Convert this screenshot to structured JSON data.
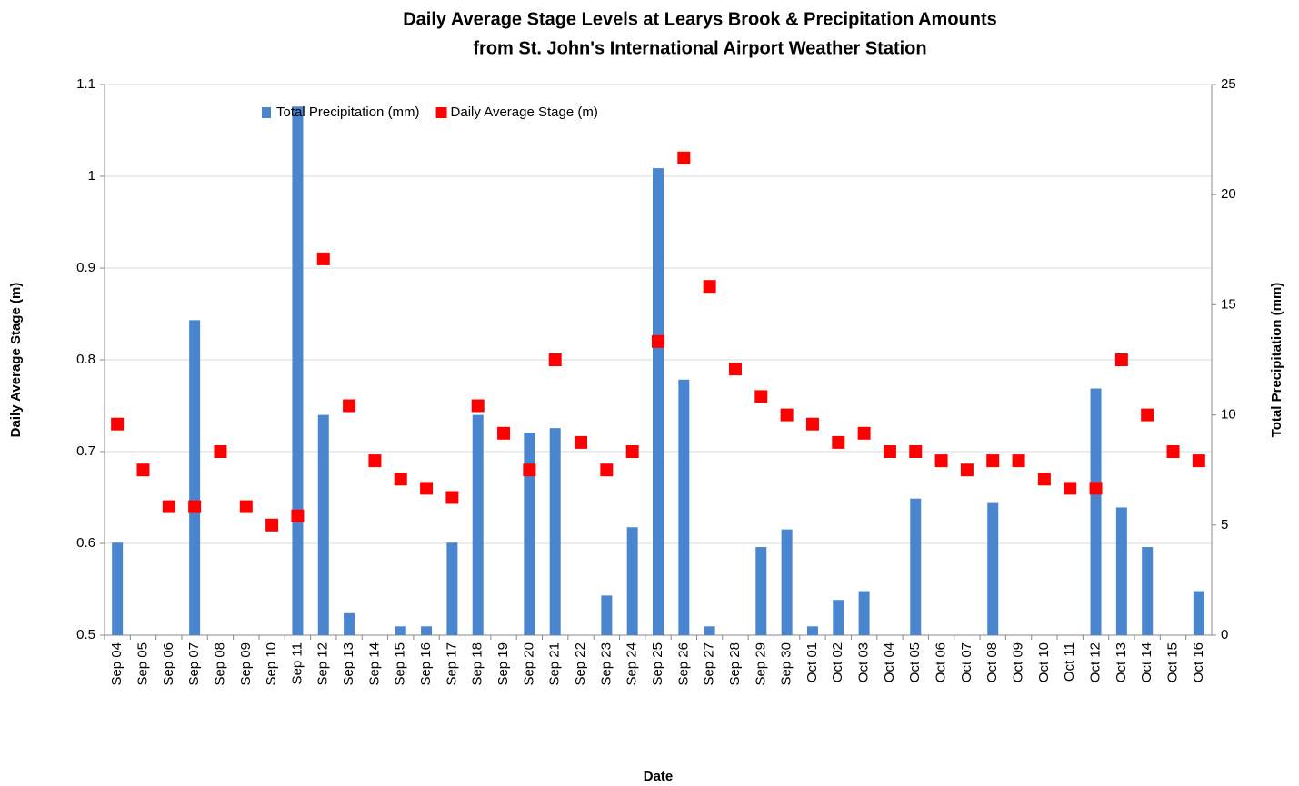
{
  "chart_data": {
    "type": "combo",
    "title": [
      "Daily Average Stage Levels at Learys Brook & Precipitation Amounts",
      "from St. John's International Airport Weather Station"
    ],
    "xlabel": "Date",
    "ylabel": "Daily Average Stage (m)",
    "y2label": "Total Precipitation (mm)",
    "categories": [
      "Sep 04",
      "Sep 05",
      "Sep 06",
      "Sep 07",
      "Sep 08",
      "Sep 09",
      "Sep 10",
      "Sep 11",
      "Sep 12",
      "Sep 13",
      "Sep 14",
      "Sep 15",
      "Sep 16",
      "Sep 17",
      "Sep 18",
      "Sep 19",
      "Sep 20",
      "Sep 21",
      "Sep 22",
      "Sep 23",
      "Sep 24",
      "Sep 25",
      "Sep 26",
      "Sep 27",
      "Sep 28",
      "Sep 29",
      "Sep 30",
      "Oct 01",
      "Oct 02",
      "Oct 03",
      "Oct 04",
      "Oct 05",
      "Oct 06",
      "Oct 07",
      "Oct 08",
      "Oct 09",
      "Oct 10",
      "Oct 11",
      "Oct 12",
      "Oct 13",
      "Oct 14",
      "Oct 15",
      "Oct 16"
    ],
    "series": [
      {
        "name": "Total Precipitation (mm)",
        "type": "bar",
        "axis": "y2",
        "color": "#4a86d0",
        "values": [
          4.2,
          0,
          0,
          14.3,
          0,
          0,
          0,
          24.0,
          10.0,
          1.0,
          0,
          0.4,
          0.4,
          4.2,
          10.0,
          0,
          9.2,
          9.4,
          0,
          1.8,
          4.9,
          21.2,
          11.6,
          0.4,
          0,
          4.0,
          4.8,
          0.4,
          1.6,
          2.0,
          0,
          6.2,
          0,
          0,
          6.0,
          0,
          0,
          0,
          11.2,
          5.8,
          4.0,
          0,
          2.0
        ]
      },
      {
        "name": "Daily Average Stage (m)",
        "type": "scatter",
        "axis": "y",
        "color": "#ff0000",
        "values": [
          0.73,
          0.68,
          0.64,
          0.64,
          0.7,
          0.64,
          0.62,
          0.63,
          0.91,
          0.75,
          0.69,
          0.67,
          0.66,
          0.65,
          0.75,
          0.72,
          0.68,
          0.8,
          0.71,
          0.68,
          0.7,
          0.82,
          1.02,
          0.88,
          0.79,
          0.76,
          0.74,
          0.73,
          0.71,
          0.72,
          0.7,
          0.7,
          0.69,
          0.68,
          0.69,
          0.69,
          0.67,
          0.66,
          0.66,
          0.8,
          0.74,
          0.7,
          0.69
        ]
      }
    ],
    "ylim": [
      0.5,
      1.1
    ],
    "yticks": [
      0.5,
      0.6,
      0.7,
      0.8,
      0.9,
      1,
      1.1
    ],
    "y2lim": [
      0,
      25
    ],
    "y2ticks": [
      0,
      5,
      10,
      15,
      20,
      25
    ],
    "grid": true,
    "legend": "top"
  }
}
